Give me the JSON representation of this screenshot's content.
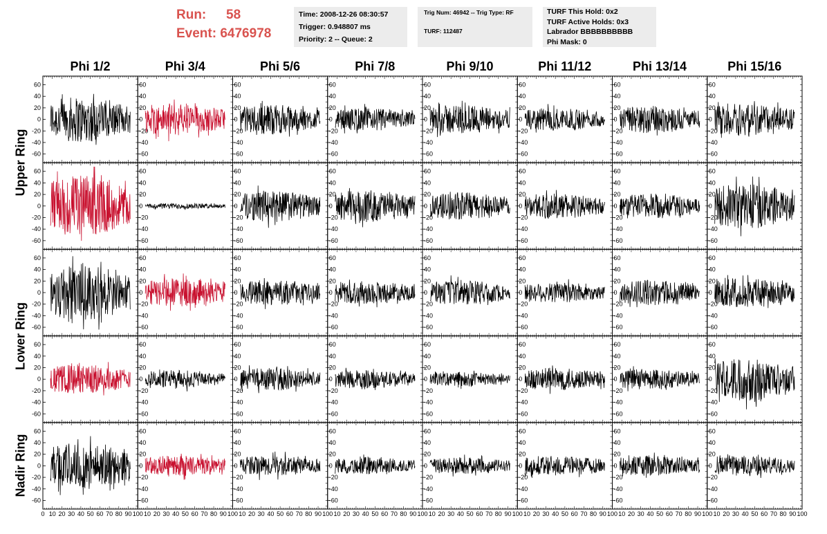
{
  "header": {
    "run_label": "Run:",
    "run_value": "58",
    "event_label": "Event:",
    "event_value": "6476978",
    "accent_color": "#d9534f"
  },
  "info_panels": {
    "time": "Time: 2008-12-26 08:30:57",
    "trigger": "Trigger: 0.948807 ms",
    "priority": "Priority: 2 -- Queue: 2",
    "trig_num": "Trig Num: 46942 -- Trig Type: RF",
    "turf": "TURF: 112487",
    "turf_this_hold": "TURF This Hold: 0x2",
    "turf_active_holds": "TURF Active Holds: 0x3",
    "labrador": "Labrador BBBBBBBBBB",
    "phi_mask": "Phi Mask: 0"
  },
  "chart_data": {
    "type": "line",
    "title": "",
    "columns": [
      "Phi 1/2",
      "Phi 3/4",
      "Phi 5/6",
      "Phi 7/8",
      "Phi 9/10",
      "Phi 11/12",
      "Phi 13/14",
      "Phi 15/16"
    ],
    "row_groups": [
      {
        "label": "Upper Ring",
        "rows": [
          0,
          1
        ]
      },
      {
        "label": "Lower Ring",
        "rows": [
          2,
          3
        ]
      },
      {
        "label": "Nadir Ring",
        "rows": [
          4
        ]
      }
    ],
    "xlim": [
      0,
      100
    ],
    "ylim": [
      -75,
      75
    ],
    "x_ticks": [
      "0",
      "10",
      "20",
      "30",
      "40",
      "50",
      "60",
      "70",
      "80",
      "90",
      "100"
    ],
    "y_ticks": [
      "-60",
      "-40",
      "-20",
      "0",
      "20",
      "40",
      "60"
    ],
    "trigger_color": "#c8102e",
    "normal_color": "#000000",
    "waveforms": [
      [
        {
          "amp": 40,
          "trig": false
        },
        {
          "amp": 28,
          "trig": true
        },
        {
          "amp": 26,
          "trig": false
        },
        {
          "amp": 20,
          "trig": false
        },
        {
          "amp": 26,
          "trig": false
        },
        {
          "amp": 20,
          "trig": false
        },
        {
          "amp": 24,
          "trig": false
        },
        {
          "amp": 30,
          "trig": false
        }
      ],
      [
        {
          "amp": 55,
          "trig": true
        },
        {
          "amp": 5,
          "trig": false
        },
        {
          "amp": 28,
          "trig": false
        },
        {
          "amp": 28,
          "trig": false
        },
        {
          "amp": 24,
          "trig": false
        },
        {
          "amp": 22,
          "trig": false
        },
        {
          "amp": 22,
          "trig": false
        },
        {
          "amp": 40,
          "trig": false
        }
      ],
      [
        {
          "amp": 50,
          "trig": false
        },
        {
          "amp": 25,
          "trig": true
        },
        {
          "amp": 22,
          "trig": false
        },
        {
          "amp": 20,
          "trig": false
        },
        {
          "amp": 22,
          "trig": false
        },
        {
          "amp": 18,
          "trig": false
        },
        {
          "amp": 22,
          "trig": false
        },
        {
          "amp": 26,
          "trig": false
        }
      ],
      [
        {
          "amp": 26,
          "trig": true
        },
        {
          "amp": 16,
          "trig": false
        },
        {
          "amp": 20,
          "trig": false
        },
        {
          "amp": 16,
          "trig": false
        },
        {
          "amp": 12,
          "trig": false
        },
        {
          "amp": 20,
          "trig": false
        },
        {
          "amp": 18,
          "trig": false
        },
        {
          "amp": 38,
          "trig": false
        }
      ],
      [
        {
          "amp": 42,
          "trig": false
        },
        {
          "amp": 18,
          "trig": true
        },
        {
          "amp": 18,
          "trig": false
        },
        {
          "amp": 15,
          "trig": false
        },
        {
          "amp": 15,
          "trig": false
        },
        {
          "amp": 18,
          "trig": false
        },
        {
          "amp": 18,
          "trig": false
        },
        {
          "amp": 18,
          "trig": false
        }
      ]
    ]
  }
}
